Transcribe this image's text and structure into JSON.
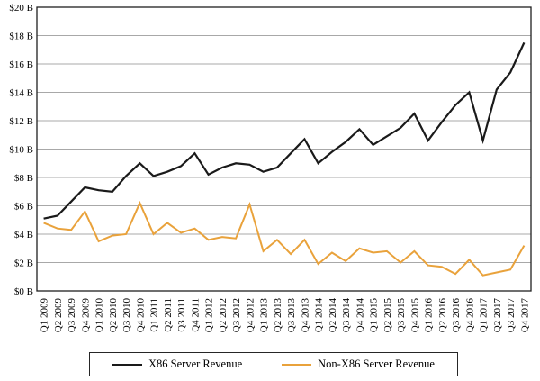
{
  "chart_data": {
    "type": "line",
    "title": "",
    "xlabel": "",
    "ylabel": "",
    "grid": true,
    "legend_position": "bottom",
    "categories": [
      "Q1 2009",
      "Q2 2009",
      "Q3 2009",
      "Q4 2009",
      "Q1 2010",
      "Q2 2010",
      "Q3 2010",
      "Q4 2010",
      "Q1 2011",
      "Q2 2011",
      "Q3 2011",
      "Q4 2011",
      "Q1 2012",
      "Q2 2012",
      "Q3 2012",
      "Q4 2012",
      "Q1 2013",
      "Q2 2013",
      "Q3 2013",
      "Q4 2013",
      "Q1 2014",
      "Q2 2014",
      "Q3 2014",
      "Q4 2014",
      "Q1 2015",
      "Q2 2015",
      "Q3 2015",
      "Q4 2015",
      "Q1 2016",
      "Q2 2016",
      "Q3 2016",
      "Q4 2016",
      "Q1 2017",
      "Q2 2017",
      "Q3 2017",
      "Q4 2017"
    ],
    "y_axis": {
      "min": 0,
      "max": 20,
      "step": 2,
      "unit": "$ B",
      "tick_labels": [
        "$0 B",
        "$2 B",
        "$4 B",
        "$6 B",
        "$8 B",
        "$10 B",
        "$12 B",
        "$14 B",
        "$16 B",
        "$18 B",
        "$20 B"
      ]
    },
    "series": [
      {
        "name": "X86 Server Revenue",
        "color": "#1A1A1A",
        "values": [
          5.1,
          5.3,
          6.3,
          7.3,
          7.1,
          7.0,
          8.1,
          9.0,
          8.1,
          8.4,
          8.8,
          9.7,
          8.2,
          8.7,
          9.0,
          8.9,
          8.4,
          8.7,
          9.7,
          10.7,
          9.0,
          9.8,
          10.5,
          11.4,
          10.3,
          10.9,
          11.5,
          12.5,
          10.6,
          11.9,
          13.1,
          14.0,
          10.6,
          14.2,
          15.4,
          17.5
        ]
      },
      {
        "name": "Non-X86 Server Revenue",
        "color": "#E9A23B",
        "values": [
          4.8,
          4.4,
          4.3,
          5.6,
          3.5,
          3.9,
          4.0,
          6.2,
          4.0,
          4.8,
          4.1,
          4.4,
          3.6,
          3.8,
          3.7,
          6.1,
          2.8,
          3.6,
          2.6,
          3.6,
          1.9,
          2.7,
          2.1,
          3.0,
          2.7,
          2.8,
          2.0,
          2.8,
          1.8,
          1.7,
          1.2,
          2.2,
          1.1,
          1.3,
          1.5,
          3.2
        ]
      }
    ],
    "gridline_color": "#A8A8A8",
    "border_color": "#1F1F1F"
  }
}
